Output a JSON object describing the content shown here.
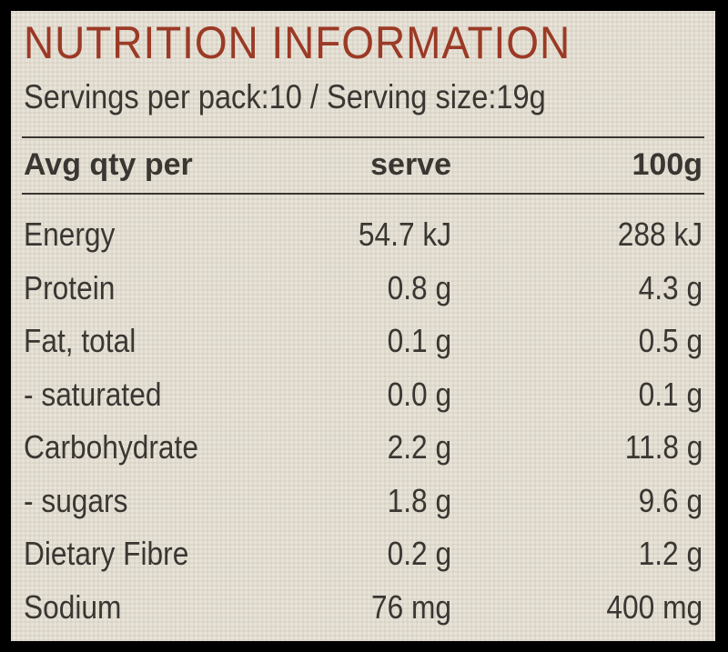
{
  "header": {
    "title": "NUTRITION INFORMATION",
    "servings": "Servings per pack:10 / Serving size:19g"
  },
  "table": {
    "columns": [
      "Avg qty per",
      "serve",
      "100g"
    ],
    "rows": [
      [
        "Energy",
        "54.7 kJ",
        "288 kJ"
      ],
      [
        "Protein",
        "0.8 g",
        "4.3 g"
      ],
      [
        "Fat, total",
        "0.1 g",
        "0.5 g"
      ],
      [
        "- saturated",
        "0.0 g",
        "0.1 g"
      ],
      [
        "Carbohydrate",
        "2.2 g",
        "11.8 g"
      ],
      [
        "- sugars",
        "1.8 g",
        "9.6 g"
      ],
      [
        "Dietary Fibre",
        "0.2 g",
        "1.2 g"
      ],
      [
        "Sodium",
        "76 mg",
        "400 mg"
      ]
    ]
  }
}
